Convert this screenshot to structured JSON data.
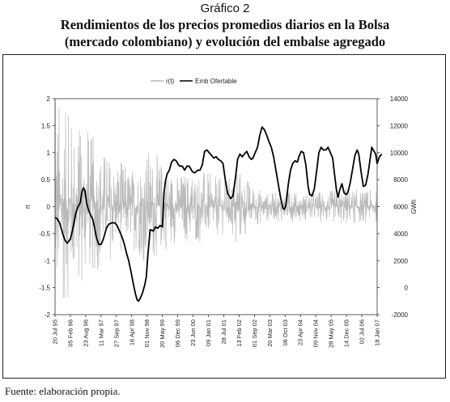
{
  "figure": {
    "label": "Gráfico 2",
    "title_line1": "Rendimientos de los precios promedios diarios en la Bolsa",
    "title_line2": "(mercado colombiano) y evolución del embalse agregado",
    "source": "Fuente: elaboración propia."
  },
  "chart_data": {
    "type": "line",
    "x_categories": [
      "20 Jul 95",
      "05 Feb 96",
      "23 Aug 96",
      "11 Mar 97",
      "27 Sep 97",
      "16 Apr 98",
      "01 Nov 98",
      "20 May 99",
      "06 Dec 99",
      "23 Jun 00",
      "09 Jan 01",
      "28 Jul 01",
      "13 Feb 02",
      "01 Sep 02",
      "20 Mar 03",
      "06 Oct 03",
      "23 Apr 04",
      "09 Nov 04",
      "28 May 05",
      "14 Dec 05",
      "02 Jul 06",
      "18 Jan 07"
    ],
    "y_left": {
      "label": "rt",
      "ticks": [
        "2",
        "1.5",
        "1",
        "0.5",
        "0",
        "-0.5",
        "-1",
        "-1.5",
        "-2"
      ],
      "range": [
        -2,
        2
      ]
    },
    "y_right": {
      "label": "GWh",
      "ticks": [
        "14000",
        "12000",
        "10000",
        "8000",
        "6000",
        "4000",
        "2000",
        "0",
        "-2000"
      ],
      "range": [
        -2000,
        14000
      ]
    },
    "legend": {
      "position": "top-center",
      "items": [
        "r(t)",
        "Emb Ofertable"
      ]
    },
    "grid": false,
    "series": [
      {
        "name": "r(t)",
        "axis": "left",
        "color": "#b9b9b9",
        "description_amplitude": [
          [
            0,
            0.9
          ],
          [
            0.7,
            0.7
          ],
          [
            1.5,
            0.65
          ],
          [
            2.3,
            0.55
          ],
          [
            3.1,
            0.45
          ],
          [
            4,
            0.35
          ],
          [
            5,
            0.3
          ],
          [
            6,
            0.45
          ],
          [
            7,
            0.35
          ],
          [
            8,
            0.25
          ],
          [
            9,
            0.3
          ],
          [
            10,
            0.25
          ],
          [
            11,
            0.2
          ],
          [
            12,
            0.3
          ],
          [
            13,
            0.15
          ],
          [
            14,
            0.1
          ],
          [
            15,
            0.12
          ],
          [
            16,
            0.1
          ],
          [
            17,
            0.12
          ],
          [
            18,
            0.12
          ],
          [
            19,
            0.15
          ],
          [
            20,
            0.12
          ],
          [
            21,
            0.12
          ]
        ]
      },
      {
        "name": "Emb Ofertable",
        "axis": "right",
        "color": "#000000",
        "values": [
          [
            0,
            5200
          ],
          [
            0.15,
            5100
          ],
          [
            0.3,
            4800
          ],
          [
            0.5,
            4000
          ],
          [
            0.65,
            3500
          ],
          [
            0.8,
            3300
          ],
          [
            1.0,
            3600
          ],
          [
            1.15,
            4300
          ],
          [
            1.35,
            5500
          ],
          [
            1.5,
            6000
          ],
          [
            1.65,
            6300
          ],
          [
            1.75,
            7100
          ],
          [
            1.85,
            7400
          ],
          [
            1.95,
            7200
          ],
          [
            2.05,
            6300
          ],
          [
            2.2,
            5700
          ],
          [
            2.35,
            5300
          ],
          [
            2.45,
            5100
          ],
          [
            2.55,
            4600
          ],
          [
            2.7,
            3700
          ],
          [
            2.85,
            3200
          ],
          [
            3.0,
            3200
          ],
          [
            3.15,
            3600
          ],
          [
            3.35,
            4400
          ],
          [
            3.5,
            4700
          ],
          [
            3.7,
            4800
          ],
          [
            3.9,
            4800
          ],
          [
            4.05,
            4600
          ],
          [
            4.2,
            4200
          ],
          [
            4.35,
            3800
          ],
          [
            4.5,
            3300
          ],
          [
            4.65,
            2600
          ],
          [
            4.8,
            2000
          ],
          [
            4.95,
            1200
          ],
          [
            5.1,
            300
          ],
          [
            5.25,
            -500
          ],
          [
            5.35,
            -900
          ],
          [
            5.45,
            -1000
          ],
          [
            5.55,
            -800
          ],
          [
            5.7,
            -400
          ],
          [
            5.85,
            200
          ],
          [
            5.95,
            800
          ],
          [
            6.05,
            2400
          ],
          [
            6.2,
            4300
          ],
          [
            6.4,
            4200
          ],
          [
            6.55,
            4500
          ],
          [
            6.7,
            4400
          ],
          [
            6.85,
            4600
          ],
          [
            7.0,
            4500
          ],
          [
            7.1,
            7000
          ],
          [
            7.2,
            7900
          ],
          [
            7.3,
            8400
          ],
          [
            7.45,
            8700
          ],
          [
            7.6,
            9300
          ],
          [
            7.75,
            9500
          ],
          [
            7.9,
            9400
          ],
          [
            8.05,
            9100
          ],
          [
            8.15,
            9000
          ],
          [
            8.3,
            9000
          ],
          [
            8.45,
            8700
          ],
          [
            8.6,
            9000
          ],
          [
            8.75,
            9000
          ],
          [
            8.95,
            8600
          ],
          [
            9.1,
            8500
          ],
          [
            9.3,
            8700
          ],
          [
            9.45,
            8700
          ],
          [
            9.6,
            9100
          ],
          [
            9.75,
            10100
          ],
          [
            9.9,
            10200
          ],
          [
            10.05,
            10000
          ],
          [
            10.2,
            9800
          ],
          [
            10.35,
            9600
          ],
          [
            10.5,
            9700
          ],
          [
            10.65,
            9500
          ],
          [
            10.8,
            9400
          ],
          [
            10.95,
            9200
          ],
          [
            11.1,
            8000
          ],
          [
            11.25,
            7000
          ],
          [
            11.35,
            6800
          ],
          [
            11.45,
            6600
          ],
          [
            11.6,
            6800
          ],
          [
            11.75,
            8000
          ],
          [
            11.9,
            9500
          ],
          [
            12.05,
            9900
          ],
          [
            12.2,
            9700
          ],
          [
            12.35,
            9900
          ],
          [
            12.5,
            10100
          ],
          [
            12.65,
            9700
          ],
          [
            12.8,
            9500
          ],
          [
            12.9,
            9600
          ],
          [
            13.05,
            10000
          ],
          [
            13.2,
            10400
          ],
          [
            13.35,
            11300
          ],
          [
            13.5,
            11900
          ],
          [
            13.65,
            11700
          ],
          [
            13.8,
            11300
          ],
          [
            13.95,
            10800
          ],
          [
            14.1,
            10400
          ],
          [
            14.25,
            9700
          ],
          [
            14.4,
            8700
          ],
          [
            14.55,
            7700
          ],
          [
            14.7,
            6700
          ],
          [
            14.85,
            5900
          ],
          [
            14.95,
            5800
          ],
          [
            15.05,
            6100
          ],
          [
            15.2,
            7600
          ],
          [
            15.35,
            8700
          ],
          [
            15.5,
            9200
          ],
          [
            15.65,
            9400
          ],
          [
            15.8,
            9300
          ],
          [
            15.9,
            9700
          ],
          [
            16.05,
            10100
          ],
          [
            16.2,
            10000
          ],
          [
            16.35,
            9100
          ],
          [
            16.5,
            7500
          ],
          [
            16.6,
            6900
          ],
          [
            16.75,
            6800
          ],
          [
            16.9,
            7300
          ],
          [
            17.05,
            8600
          ],
          [
            17.2,
            10000
          ],
          [
            17.35,
            10400
          ],
          [
            17.5,
            10200
          ],
          [
            17.65,
            10200
          ],
          [
            17.8,
            10400
          ],
          [
            17.95,
            10000
          ],
          [
            18.1,
            9600
          ],
          [
            18.2,
            8600
          ],
          [
            18.35,
            7200
          ],
          [
            18.45,
            6700
          ],
          [
            18.55,
            7200
          ],
          [
            18.7,
            7700
          ],
          [
            18.85,
            7000
          ],
          [
            19.0,
            6900
          ],
          [
            19.1,
            7100
          ],
          [
            19.25,
            7800
          ],
          [
            19.4,
            8800
          ],
          [
            19.55,
            9800
          ],
          [
            19.7,
            10200
          ],
          [
            19.8,
            9900
          ],
          [
            19.95,
            8600
          ],
          [
            20.1,
            7500
          ],
          [
            20.25,
            7600
          ],
          [
            20.4,
            8400
          ],
          [
            20.55,
            9600
          ],
          [
            20.65,
            10400
          ],
          [
            20.75,
            10200
          ],
          [
            20.9,
            9900
          ],
          [
            21.0,
            9200
          ],
          [
            21.15,
            9700
          ],
          [
            21.3,
            9900
          ]
        ]
      }
    ]
  }
}
